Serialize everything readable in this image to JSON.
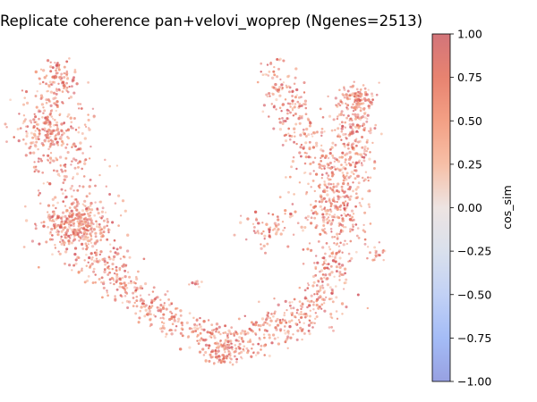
{
  "chart_data": {
    "type": "scatter",
    "title": "Replicate coherence pan+velovi_woprep (Ngenes=2513)",
    "xlabel": "",
    "ylabel": "",
    "axes_visible": false,
    "point_count_shown": 2513,
    "colormap": "coolwarm",
    "color_accent": "#d9544d",
    "colorbar": {
      "label": "cos_sim",
      "range": [
        -1.0,
        1.0
      ],
      "ticks": [
        "1.00",
        "0.75",
        "0.50",
        "0.25",
        "0.00",
        "−0.25",
        "−0.50",
        "−0.75",
        "−1.00"
      ],
      "colors": [
        "#d1505a",
        "#e36d57",
        "#f18f6f",
        "#f5b497",
        "#ebd3c7",
        "#d3dbe9",
        "#b7c9f3",
        "#94b0f5",
        "#7a8fe0"
      ]
    },
    "cluster_shape": "U-shaped embedding with a left arm, a bottom arc and a right arm",
    "cos_sim_typical": [
      0.55,
      0.95
    ]
  }
}
